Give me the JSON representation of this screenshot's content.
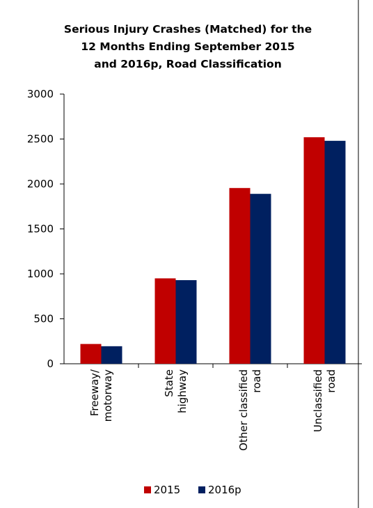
{
  "chart_data": {
    "type": "bar",
    "title_lines": [
      "Serious Injury Crashes (Matched) for the",
      "12 Months Ending September 2015",
      "and 2016p, Road Classification"
    ],
    "categories": [
      [
        "Freeway/",
        "motorway"
      ],
      [
        "State",
        "highway"
      ],
      [
        "Other classified",
        "road"
      ],
      [
        "Unclassified",
        "road"
      ]
    ],
    "series": [
      {
        "name": "2015",
        "color": "#c00000",
        "values": [
          220,
          950,
          1955,
          2520
        ]
      },
      {
        "name": "2016p",
        "color": "#002060",
        "values": [
          195,
          930,
          1890,
          2480
        ]
      }
    ],
    "ylim": [
      0,
      3000
    ],
    "yticks": [
      0,
      500,
      1000,
      1500,
      2000,
      2500,
      3000
    ],
    "grid": false,
    "legend": "bottom"
  }
}
